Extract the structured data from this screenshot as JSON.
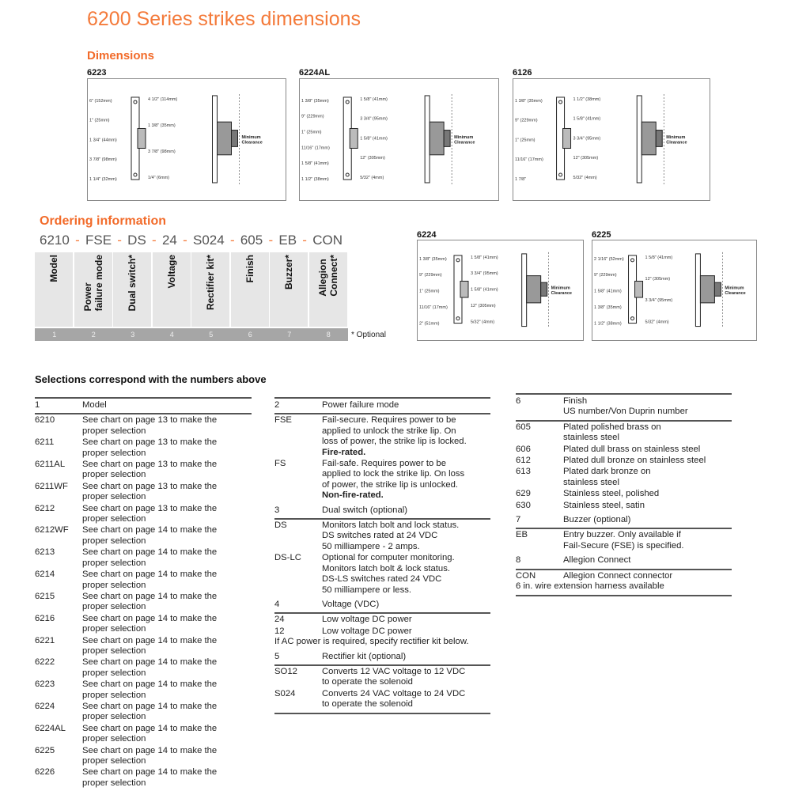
{
  "title": "6200 Series strikes dimensions",
  "dimensions": {
    "heading": "Dimensions",
    "min_clearance": "Minimum\nClearance",
    "diagrams": [
      {
        "model": "6223",
        "labels": [
          "6\" (152mm)",
          "1\" (25mm)",
          "1 3/4\" (44mm)",
          "3 7/8\" (98mm)",
          "1 1/4\" (32mm)",
          "4 1/2\" (114mm)",
          "1 3/8\" (35mm)",
          "3 7/8\" (98mm)",
          "1/4\" (6mm)"
        ]
      },
      {
        "model": "6224AL",
        "labels": [
          "1 3/8\" (35mm)",
          "9\" (229mm)",
          "1\" (25mm)",
          "11/16\" (17mm)",
          "1 5/8\" (41mm)",
          "1 1/2\" (38mm)",
          "1 5/8\" (41mm)",
          "3 3/4\" (95mm)",
          "1 5/8\" (41mm)",
          "12\" (305mm)",
          "5/32\" (4mm)"
        ]
      },
      {
        "model": "6126",
        "labels": [
          "1 3/8\" (35mm)",
          "9\" (229mm)",
          "1\" (25mm)",
          "11/16\" (17mm)",
          "1 7/8\"",
          "1 1/2\" (38mm)",
          "1 5/8\" (41mm)",
          "3 3/4\" (95mm)",
          "12\" (305mm)",
          "5/32\" (4mm)"
        ]
      },
      {
        "model": "6224",
        "labels": [
          "1 3/8\" (35mm)",
          "9\" (229mm)",
          "1\" (25mm)",
          "11/16\" (17mm)",
          "2\" (51mm)",
          "1 5/8\" (41mm)",
          "3 3/4\" (95mm)",
          "1 5/8\" (41mm)",
          "12\" (305mm)",
          "5/32\" (4mm)"
        ]
      },
      {
        "model": "6225",
        "labels": [
          "2 1/16\" (52mm)",
          "9\" (229mm)",
          "1 5/8\" (41mm)",
          "1 3/8\" (35mm)",
          "1 1/2\" (38mm)",
          "1 5/8\" (41mm)",
          "12\" (305mm)",
          "3 3/4\" (95mm)",
          "5/32\" (4mm)"
        ]
      }
    ]
  },
  "ordering": {
    "heading": "Ordering information",
    "codes": [
      "6210",
      "FSE",
      "DS",
      "24",
      "S024",
      "605",
      "EB",
      "CON"
    ],
    "columns": [
      "Model",
      "Power\nfailure mode",
      "Dual switch*",
      "Voltage",
      "Rectifier kit*",
      "Finish",
      "Buzzer*",
      "Allegion\nConnect*"
    ],
    "numbers": [
      "1",
      "2",
      "3",
      "4",
      "5",
      "6",
      "7",
      "8"
    ],
    "optional_note": "* Optional"
  },
  "selections": {
    "heading": "Selections correspond with the numbers above",
    "table1": {
      "header": [
        "1",
        "Model"
      ],
      "rows": [
        [
          "6210",
          "See chart on page 13 to make the\nproper selection"
        ],
        [
          "6211",
          "See chart on page 13 to make the\nproper selection"
        ],
        [
          "6211AL",
          "See chart on page 13 to make the\nproper selection"
        ],
        [
          "6211WF",
          "See chart on page 13 to make the\nproper selection"
        ],
        [
          "6212",
          "See chart on page 13 to make the\nproper selection"
        ],
        [
          "6212WF",
          "See chart on page 14 to make the\nproper selection"
        ],
        [
          "6213",
          "See chart on page 14 to make the\nproper selection"
        ],
        [
          "6214",
          "See chart on page 14 to make the\nproper selection"
        ],
        [
          "6215",
          "See chart on page 14 to make the\nproper selection"
        ],
        [
          "6216",
          "See chart on page 14 to make the\nproper selection"
        ],
        [
          "6221",
          "See chart on page 14 to make the\nproper selection"
        ],
        [
          "6222",
          "See chart on page 14 to make the\nproper selection"
        ],
        [
          "6223",
          "See chart on page 14 to make the\nproper selection"
        ],
        [
          "6224",
          "See chart on page 14 to make the\nproper selection"
        ],
        [
          "6224AL",
          "See chart on page 14 to make the\nproper selection"
        ],
        [
          "6225",
          "See chart on page 14 to make the\nproper selection"
        ],
        [
          "6226",
          "See chart on page 14 to make the\nproper selection"
        ]
      ]
    },
    "table2": [
      {
        "header": [
          "2",
          "Power failure mode"
        ],
        "rows": [
          [
            "FSE",
            "Fail-secure. Requires power to be\napplied to unlock the strike lip. On\nloss of power, the strike lip is locked.",
            "Fire-rated."
          ],
          [
            "FS",
            "Fail-safe. Requires power to be\napplied to lock the strike lip. On loss\nof power, the strike lip is unlocked.",
            "Non-fire-rated."
          ]
        ]
      },
      {
        "header": [
          "3",
          "Dual switch (optional)"
        ],
        "rows": [
          [
            "DS",
            "Monitors latch bolt and lock status.\nDS switches rated at 24 VDC\n50 milliampere - 2 amps.",
            ""
          ],
          [
            "DS-LC",
            "Optional for computer monitoring.\nMonitors latch bolt & lock status.\nDS-LS switches rated 24 VDC\n50 milliampere or less.",
            ""
          ]
        ]
      },
      {
        "header": [
          "4",
          "Voltage (VDC)"
        ],
        "rows": [
          [
            "24",
            "Low voltage DC power",
            ""
          ],
          [
            "12",
            "Low voltage DC power",
            ""
          ]
        ],
        "note": "If AC power is required, specify rectifier kit below."
      },
      {
        "header": [
          "5",
          "Rectifier kit (optional)"
        ],
        "rows": [
          [
            "SO12",
            "Converts 12 VAC voltage to 12 VDC\nto operate the solenoid",
            ""
          ],
          [
            "S024",
            "Converts 24 VAC voltage to 24 VDC\nto operate the solenoid",
            ""
          ]
        ]
      }
    ],
    "table3": [
      {
        "header": [
          "6",
          "Finish\nUS number/Von Duprin number"
        ],
        "rows": [
          [
            "605",
            "Plated polished brass on\nstainless steel"
          ],
          [
            "606",
            "Plated dull brass on stainless steel"
          ],
          [
            "612",
            "Plated dull bronze on stainless steel"
          ],
          [
            "613",
            "Plated dark bronze on\nstainless steel"
          ],
          [
            "629",
            "Stainless steel, polished"
          ],
          [
            "630",
            "Stainless steel, satin"
          ]
        ]
      },
      {
        "header": [
          "7",
          "Buzzer (optional)"
        ],
        "rows": [
          [
            "EB",
            "Entry buzzer. Only available if\nFail-Secure (FSE) is specified."
          ]
        ]
      },
      {
        "header": [
          "8",
          "Allegion Connect"
        ],
        "rows": [
          [
            "CON",
            "Allegion Connect connector"
          ]
        ],
        "note": "6 in. wire extension harness available"
      }
    ]
  },
  "colors": {
    "accent": "#f47a3a",
    "column_bg": "#e6e6e6",
    "number_bar": "#a6a6a6"
  }
}
